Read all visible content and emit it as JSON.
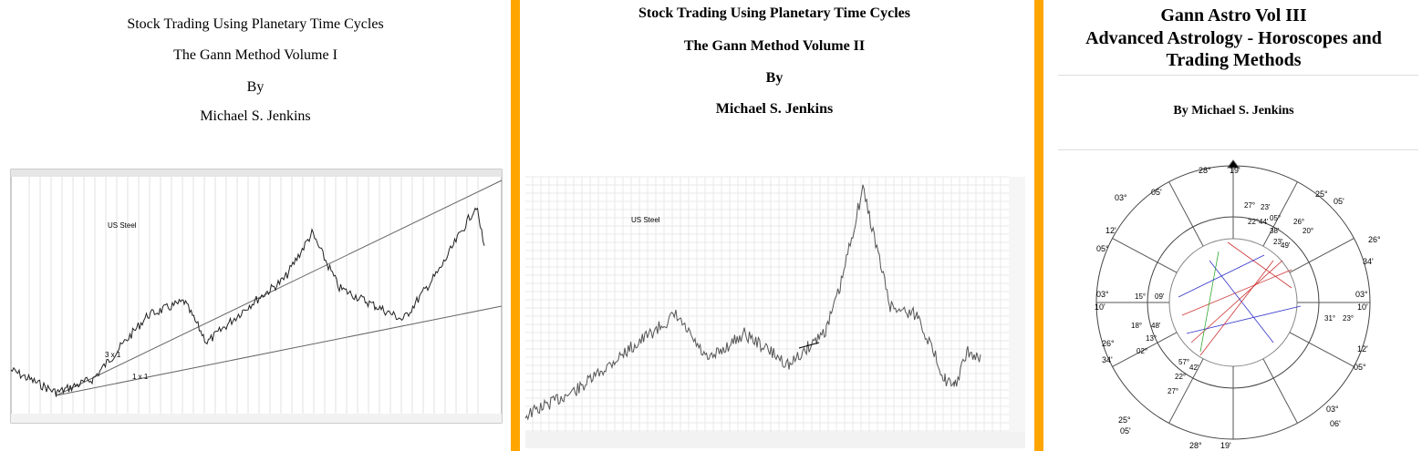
{
  "colors": {
    "divider": "#FFA500",
    "text": "#000000"
  },
  "cover1": {
    "line1": "Stock Trading Using Planetary Time Cycles",
    "line2": "The Gann Method Volume I",
    "line3": "By",
    "line4": "Michael S. Jenkins",
    "chart_label": "US Steel",
    "annot_3x1": "3 x 1",
    "annot_1x1": "1 x 1"
  },
  "cover2": {
    "line1": "Stock Trading Using Planetary Time Cycles",
    "line2": "The Gann Method Volume II",
    "line3": "By",
    "line4": "Michael S. Jenkins",
    "chart_label": "US Steel"
  },
  "cover3": {
    "title1": "Gann Astro Vol III",
    "title2": "Advanced Astrology - Horoscopes and",
    "title3": "Trading Methods",
    "author": "By Michael S. Jenkins",
    "degrees": [
      "28°",
      "19'",
      "05'",
      "03°",
      "25°",
      "05'",
      "12'",
      "05°",
      "26°",
      "34'",
      "03°",
      "10'",
      "03°",
      "10'",
      "26°",
      "34'",
      "12'",
      "05°",
      "25°",
      "05'",
      "03°",
      "06'",
      "28°",
      "19'"
    ],
    "planets": [
      "27°",
      "23'",
      "22°",
      "44'",
      "05°",
      "26°",
      "38'",
      "20°",
      "23'",
      "49'",
      "15°",
      "09'",
      "18°",
      "48'",
      "13°",
      "02°",
      "57°",
      "42'",
      "22°",
      "27°",
      "31°",
      "23°"
    ]
  }
}
